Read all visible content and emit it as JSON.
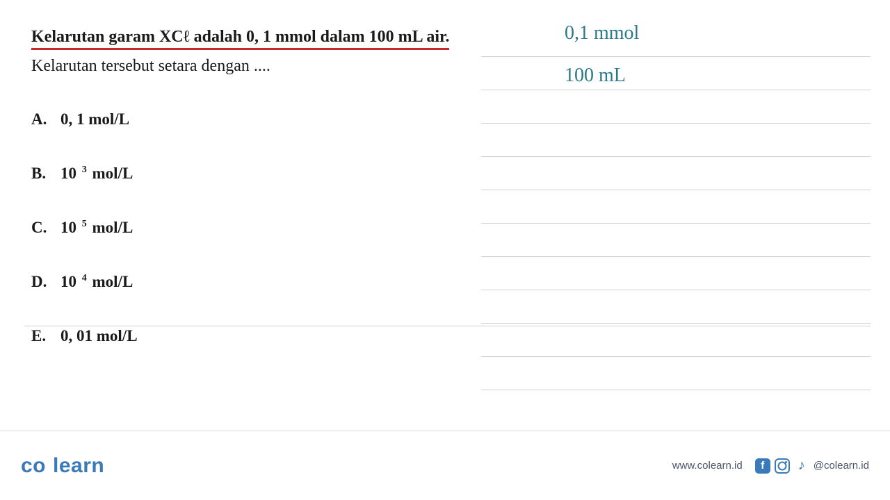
{
  "question": {
    "line1": "Kelarutan garam XCℓ adalah 0, 1 mmol dalam 100 mL air.",
    "line2": "Kelarutan tersebut setara dengan ...."
  },
  "options": [
    {
      "letter": "A.",
      "text": "0, 1 mol/L",
      "has_sup": false
    },
    {
      "letter": "B.",
      "base": "10",
      "sup": "3",
      "suffix": " mol/L",
      "has_sup": true
    },
    {
      "letter": "C.",
      "base": "10",
      "sup": "5",
      "suffix": " mol/L",
      "has_sup": true
    },
    {
      "letter": "D.",
      "base": "10",
      "sup": "4",
      "suffix": " mol/L",
      "has_sup": true
    },
    {
      "letter": "E.",
      "text": "0, 01 mol/L",
      "has_sup": false
    }
  ],
  "handwritten": {
    "line1": "0,1 mmol",
    "line2": "100 mL"
  },
  "footer": {
    "logo_part1": "co",
    "logo_part2": "learn",
    "website": "www.colearn.id",
    "handle": "@colearn.id"
  },
  "colors": {
    "underline": "#c82828",
    "handwritten": "#2a7a8a",
    "brand": "#3a7ab8",
    "text": "#1a1a1a",
    "grid_line": "#d0d0d0",
    "footer_text": "#4a5568"
  }
}
